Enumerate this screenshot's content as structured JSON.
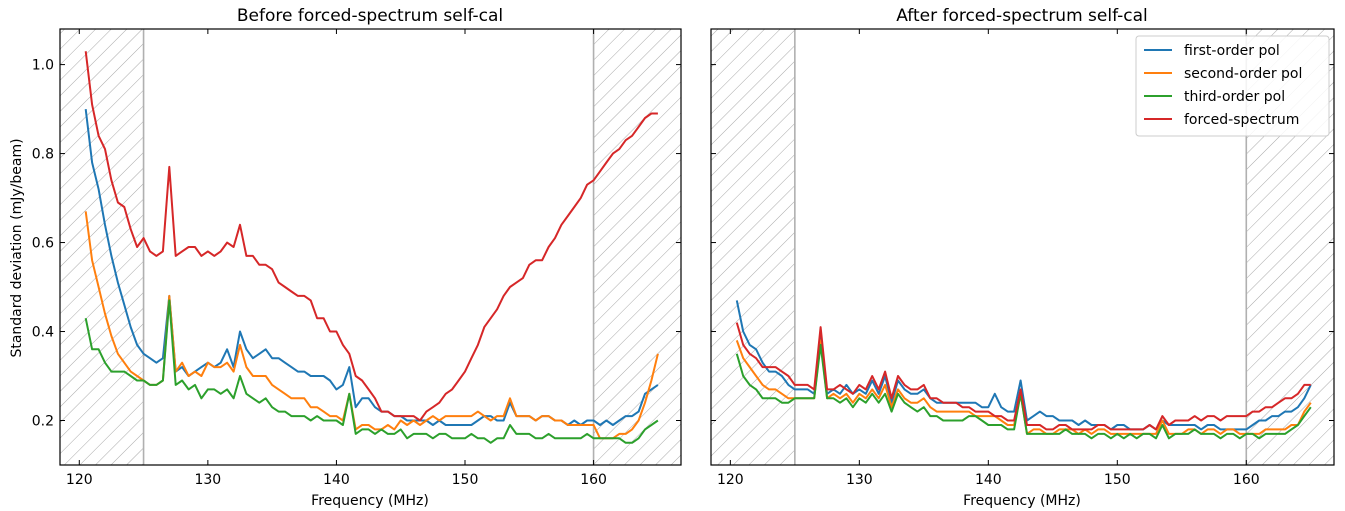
{
  "chart_data": [
    {
      "type": "line",
      "title": "Before forced-spectrum self-cal",
      "xlabel": "Frequency (MHz)",
      "ylabel": "Standard deviation (mJy/beam)",
      "xlim": [
        118.5,
        166.8
      ],
      "ylim": [
        0.1,
        1.08
      ],
      "xticks": [
        120,
        130,
        140,
        150,
        160
      ],
      "yticks": [
        0.2,
        0.4,
        0.6,
        0.8,
        1.0
      ],
      "shaded_regions": [
        [
          118.5,
          125.0
        ],
        [
          160.0,
          166.8
        ]
      ],
      "grid": false,
      "legend": "none",
      "x_start": 120.5,
      "x_step": 0.5,
      "series": [
        {
          "name": "first-order pol",
          "color": "#1f77b4",
          "values": [
            0.9,
            0.78,
            0.72,
            0.64,
            0.57,
            0.51,
            0.46,
            0.41,
            0.37,
            0.35,
            0.34,
            0.33,
            0.34,
            0.48,
            0.31,
            0.32,
            0.3,
            0.31,
            0.32,
            0.33,
            0.32,
            0.33,
            0.36,
            0.32,
            0.4,
            0.36,
            0.34,
            0.35,
            0.36,
            0.34,
            0.34,
            0.33,
            0.32,
            0.31,
            0.31,
            0.3,
            0.3,
            0.3,
            0.29,
            0.27,
            0.28,
            0.32,
            0.23,
            0.25,
            0.25,
            0.23,
            0.22,
            0.22,
            0.21,
            0.21,
            0.2,
            0.2,
            0.2,
            0.2,
            0.19,
            0.2,
            0.19,
            0.19,
            0.19,
            0.19,
            0.19,
            0.2,
            0.21,
            0.21,
            0.2,
            0.2,
            0.24,
            0.21,
            0.21,
            0.21,
            0.2,
            0.21,
            0.21,
            0.2,
            0.2,
            0.19,
            0.2,
            0.19,
            0.2,
            0.2,
            0.19,
            0.2,
            0.19,
            0.2,
            0.21,
            0.21,
            0.22,
            0.26,
            0.27,
            0.28
          ]
        },
        {
          "name": "second-order pol",
          "color": "#ff7f0e",
          "values": [
            0.67,
            0.56,
            0.5,
            0.44,
            0.39,
            0.35,
            0.33,
            0.31,
            0.3,
            0.29,
            0.28,
            0.28,
            0.29,
            0.48,
            0.31,
            0.33,
            0.3,
            0.31,
            0.3,
            0.33,
            0.32,
            0.32,
            0.33,
            0.31,
            0.37,
            0.32,
            0.3,
            0.3,
            0.3,
            0.28,
            0.27,
            0.26,
            0.25,
            0.25,
            0.25,
            0.23,
            0.23,
            0.22,
            0.21,
            0.21,
            0.2,
            0.26,
            0.18,
            0.19,
            0.19,
            0.18,
            0.18,
            0.19,
            0.18,
            0.2,
            0.19,
            0.2,
            0.19,
            0.2,
            0.21,
            0.2,
            0.21,
            0.21,
            0.21,
            0.21,
            0.21,
            0.22,
            0.21,
            0.2,
            0.21,
            0.21,
            0.25,
            0.21,
            0.21,
            0.21,
            0.2,
            0.21,
            0.21,
            0.2,
            0.2,
            0.19,
            0.19,
            0.19,
            0.19,
            0.19,
            0.16,
            0.16,
            0.16,
            0.17,
            0.17,
            0.18,
            0.2,
            0.24,
            0.29,
            0.35
          ]
        },
        {
          "name": "third-order pol",
          "color": "#2ca02c",
          "values": [
            0.43,
            0.36,
            0.36,
            0.33,
            0.31,
            0.31,
            0.31,
            0.3,
            0.29,
            0.29,
            0.28,
            0.28,
            0.29,
            0.47,
            0.28,
            0.29,
            0.27,
            0.28,
            0.25,
            0.27,
            0.27,
            0.26,
            0.27,
            0.25,
            0.3,
            0.26,
            0.25,
            0.24,
            0.25,
            0.23,
            0.22,
            0.22,
            0.21,
            0.21,
            0.21,
            0.2,
            0.21,
            0.2,
            0.2,
            0.2,
            0.19,
            0.26,
            0.17,
            0.18,
            0.18,
            0.17,
            0.18,
            0.17,
            0.17,
            0.18,
            0.16,
            0.17,
            0.17,
            0.17,
            0.16,
            0.17,
            0.17,
            0.16,
            0.16,
            0.16,
            0.17,
            0.16,
            0.16,
            0.15,
            0.16,
            0.16,
            0.19,
            0.17,
            0.17,
            0.17,
            0.16,
            0.16,
            0.17,
            0.16,
            0.16,
            0.16,
            0.16,
            0.16,
            0.17,
            0.16,
            0.16,
            0.16,
            0.16,
            0.16,
            0.15,
            0.15,
            0.16,
            0.18,
            0.19,
            0.2
          ]
        },
        {
          "name": "forced-spectrum",
          "color": "#d62728",
          "values": [
            1.03,
            0.91,
            0.84,
            0.81,
            0.74,
            0.69,
            0.68,
            0.63,
            0.59,
            0.61,
            0.58,
            0.57,
            0.58,
            0.77,
            0.57,
            0.58,
            0.59,
            0.59,
            0.57,
            0.58,
            0.57,
            0.58,
            0.6,
            0.59,
            0.64,
            0.57,
            0.57,
            0.55,
            0.55,
            0.54,
            0.51,
            0.5,
            0.49,
            0.48,
            0.48,
            0.47,
            0.43,
            0.43,
            0.4,
            0.4,
            0.37,
            0.35,
            0.3,
            0.29,
            0.27,
            0.25,
            0.22,
            0.22,
            0.21,
            0.21,
            0.21,
            0.21,
            0.2,
            0.22,
            0.23,
            0.24,
            0.26,
            0.27,
            0.29,
            0.31,
            0.34,
            0.37,
            0.41,
            0.43,
            0.45,
            0.48,
            0.5,
            0.51,
            0.52,
            0.55,
            0.56,
            0.56,
            0.59,
            0.61,
            0.64,
            0.66,
            0.68,
            0.7,
            0.73,
            0.74,
            0.76,
            0.78,
            0.8,
            0.81,
            0.83,
            0.84,
            0.86,
            0.88,
            0.89,
            0.89
          ]
        }
      ]
    },
    {
      "type": "line",
      "title": "After forced-spectrum self-cal",
      "xlabel": "Frequency (MHz)",
      "ylabel": "",
      "xlim": [
        118.5,
        166.8
      ],
      "ylim": [
        0.1,
        1.08
      ],
      "xticks": [
        120,
        130,
        140,
        150,
        160
      ],
      "yticks": [
        0.2,
        0.4,
        0.6,
        0.8,
        1.0
      ],
      "shaded_regions": [
        [
          118.5,
          125.0
        ],
        [
          160.0,
          166.8
        ]
      ],
      "grid": false,
      "legend": "top-right",
      "x_start": 120.5,
      "x_step": 0.5,
      "series": [
        {
          "name": "first-order pol",
          "color": "#1f77b4",
          "values": [
            0.47,
            0.4,
            0.37,
            0.36,
            0.33,
            0.31,
            0.31,
            0.3,
            0.28,
            0.27,
            0.27,
            0.27,
            0.26,
            0.39,
            0.26,
            0.27,
            0.26,
            0.28,
            0.26,
            0.27,
            0.26,
            0.29,
            0.26,
            0.3,
            0.24,
            0.29,
            0.27,
            0.26,
            0.26,
            0.27,
            0.25,
            0.24,
            0.24,
            0.24,
            0.24,
            0.24,
            0.24,
            0.24,
            0.23,
            0.23,
            0.26,
            0.23,
            0.22,
            0.22,
            0.29,
            0.2,
            0.21,
            0.22,
            0.21,
            0.21,
            0.2,
            0.2,
            0.2,
            0.19,
            0.2,
            0.19,
            0.19,
            0.19,
            0.18,
            0.19,
            0.19,
            0.18,
            0.18,
            0.18,
            0.19,
            0.18,
            0.2,
            0.19,
            0.19,
            0.19,
            0.19,
            0.19,
            0.18,
            0.19,
            0.19,
            0.18,
            0.18,
            0.18,
            0.18,
            0.18,
            0.19,
            0.2,
            0.2,
            0.21,
            0.21,
            0.22,
            0.22,
            0.23,
            0.25,
            0.28
          ]
        },
        {
          "name": "second-order pol",
          "color": "#ff7f0e",
          "values": [
            0.38,
            0.34,
            0.32,
            0.3,
            0.28,
            0.27,
            0.27,
            0.26,
            0.25,
            0.25,
            0.25,
            0.25,
            0.25,
            0.38,
            0.25,
            0.26,
            0.25,
            0.26,
            0.24,
            0.26,
            0.25,
            0.27,
            0.25,
            0.28,
            0.23,
            0.27,
            0.25,
            0.24,
            0.24,
            0.25,
            0.23,
            0.22,
            0.22,
            0.22,
            0.22,
            0.22,
            0.22,
            0.21,
            0.21,
            0.21,
            0.21,
            0.2,
            0.19,
            0.19,
            0.26,
            0.17,
            0.18,
            0.18,
            0.17,
            0.17,
            0.18,
            0.18,
            0.18,
            0.17,
            0.18,
            0.17,
            0.18,
            0.18,
            0.17,
            0.17,
            0.17,
            0.17,
            0.17,
            0.17,
            0.17,
            0.17,
            0.2,
            0.17,
            0.17,
            0.17,
            0.18,
            0.18,
            0.17,
            0.18,
            0.18,
            0.17,
            0.18,
            0.18,
            0.17,
            0.17,
            0.17,
            0.17,
            0.18,
            0.18,
            0.18,
            0.18,
            0.19,
            0.19,
            0.22,
            0.24
          ]
        },
        {
          "name": "third-order pol",
          "color": "#2ca02c",
          "values": [
            0.35,
            0.3,
            0.28,
            0.27,
            0.25,
            0.25,
            0.25,
            0.24,
            0.24,
            0.25,
            0.25,
            0.25,
            0.25,
            0.37,
            0.25,
            0.25,
            0.24,
            0.25,
            0.23,
            0.25,
            0.24,
            0.26,
            0.24,
            0.26,
            0.22,
            0.26,
            0.24,
            0.23,
            0.22,
            0.23,
            0.21,
            0.21,
            0.2,
            0.2,
            0.2,
            0.2,
            0.21,
            0.21,
            0.2,
            0.19,
            0.19,
            0.19,
            0.18,
            0.18,
            0.26,
            0.17,
            0.17,
            0.17,
            0.17,
            0.17,
            0.17,
            0.18,
            0.17,
            0.17,
            0.17,
            0.16,
            0.17,
            0.17,
            0.16,
            0.17,
            0.16,
            0.17,
            0.16,
            0.17,
            0.17,
            0.16,
            0.19,
            0.16,
            0.17,
            0.17,
            0.17,
            0.18,
            0.17,
            0.17,
            0.17,
            0.16,
            0.17,
            0.17,
            0.16,
            0.17,
            0.17,
            0.16,
            0.17,
            0.17,
            0.17,
            0.17,
            0.18,
            0.19,
            0.21,
            0.23
          ]
        },
        {
          "name": "forced-spectrum",
          "color": "#d62728",
          "values": [
            0.42,
            0.37,
            0.35,
            0.34,
            0.32,
            0.32,
            0.32,
            0.31,
            0.3,
            0.28,
            0.28,
            0.28,
            0.27,
            0.41,
            0.27,
            0.27,
            0.28,
            0.27,
            0.26,
            0.28,
            0.27,
            0.3,
            0.27,
            0.31,
            0.25,
            0.3,
            0.28,
            0.27,
            0.27,
            0.28,
            0.25,
            0.25,
            0.24,
            0.24,
            0.24,
            0.23,
            0.23,
            0.22,
            0.22,
            0.22,
            0.21,
            0.21,
            0.2,
            0.2,
            0.27,
            0.19,
            0.19,
            0.19,
            0.18,
            0.18,
            0.19,
            0.19,
            0.18,
            0.18,
            0.18,
            0.18,
            0.19,
            0.19,
            0.18,
            0.18,
            0.18,
            0.18,
            0.18,
            0.18,
            0.19,
            0.18,
            0.21,
            0.19,
            0.2,
            0.2,
            0.2,
            0.21,
            0.2,
            0.21,
            0.21,
            0.2,
            0.21,
            0.21,
            0.21,
            0.21,
            0.22,
            0.22,
            0.23,
            0.23,
            0.24,
            0.25,
            0.25,
            0.26,
            0.28,
            0.28
          ]
        }
      ]
    }
  ]
}
